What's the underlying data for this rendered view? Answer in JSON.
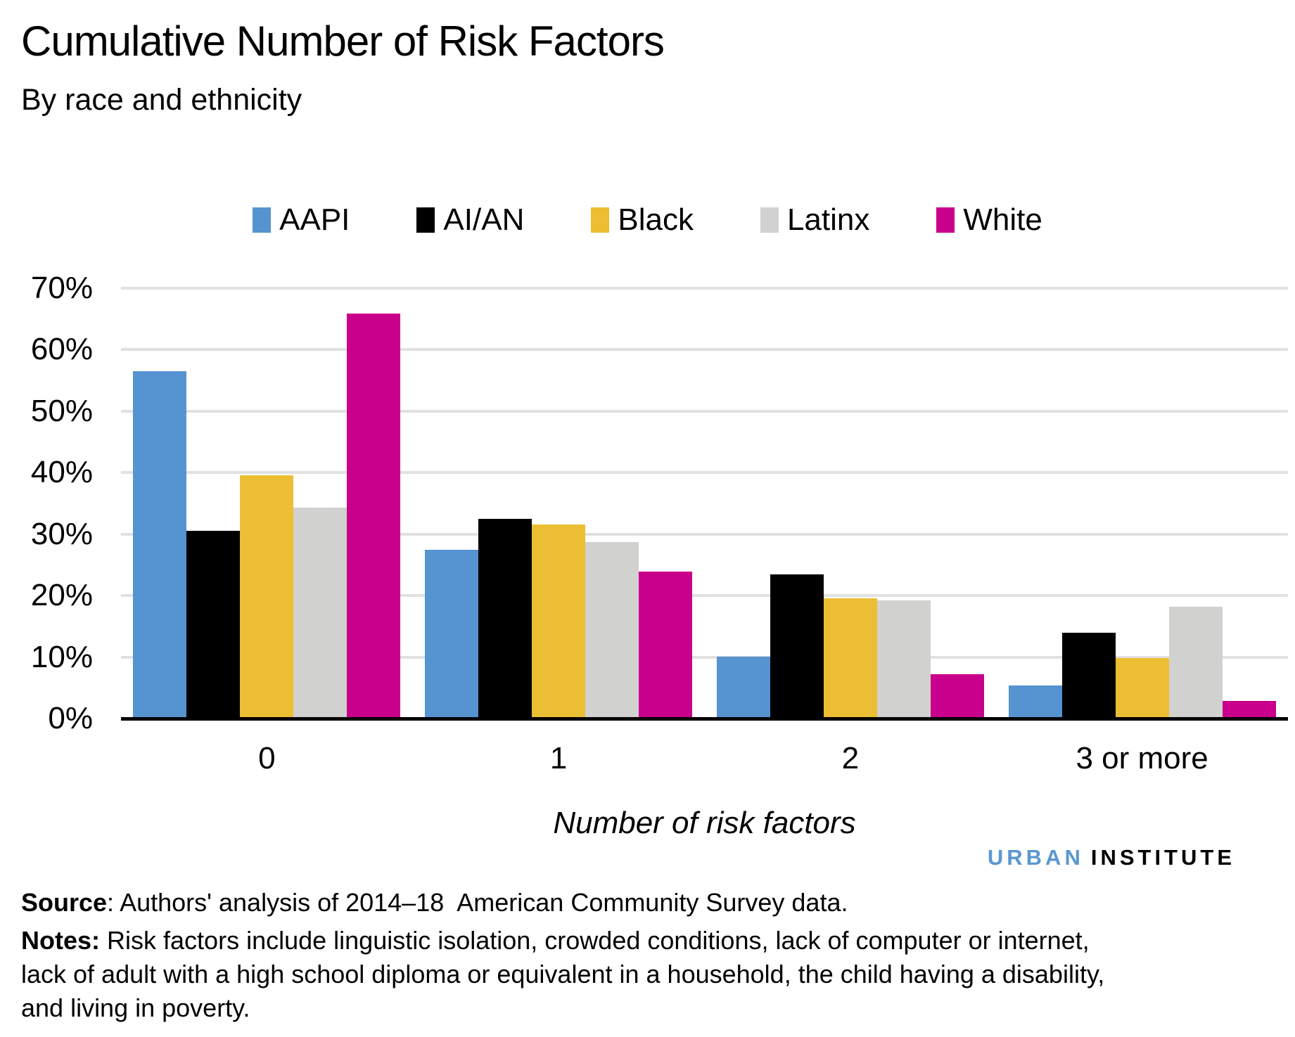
{
  "chart_data": {
    "type": "bar",
    "title": "Cumulative Number of Risk Factors",
    "subtitle": "By race and ethnicity",
    "categories": [
      "0",
      "1",
      "2",
      "3 or more"
    ],
    "series": [
      {
        "name": "AAPI",
        "color": "#5693d1",
        "values": [
          56.5,
          27.4,
          10.1,
          5.4
        ]
      },
      {
        "name": "AI/AN",
        "color": "#000000",
        "values": [
          30.5,
          32.5,
          23.4,
          14.0
        ]
      },
      {
        "name": "Black",
        "color": "#ecbe33",
        "values": [
          39.6,
          31.6,
          19.6,
          9.8
        ]
      },
      {
        "name": "Latinx",
        "color": "#d1d1d0",
        "values": [
          34.3,
          28.7,
          19.2,
          18.2
        ]
      },
      {
        "name": "White",
        "color": "#c9008c",
        "values": [
          65.9,
          23.9,
          7.2,
          2.9
        ]
      }
    ],
    "xlabel": "Number of risk factors",
    "ylabel": "",
    "ylim": [
      0,
      70
    ],
    "yticks": [
      {
        "label": "0%",
        "value": 0
      },
      {
        "label": "10%",
        "value": 10
      },
      {
        "label": "20%",
        "value": 20
      },
      {
        "label": "30%",
        "value": 30
      },
      {
        "label": "40%",
        "value": 40
      },
      {
        "label": "50%",
        "value": 50
      },
      {
        "label": "60%",
        "value": 60
      },
      {
        "label": "70%",
        "value": 70
      }
    ],
    "grid": true,
    "legend_position": "top",
    "gridline_color": "#e1e1e1",
    "axis_color": "#000000"
  },
  "logo": {
    "part1": "URBAN",
    "part2": "INSTITUTE",
    "part1_color": "#5b97d1",
    "part2_color": "#000000"
  },
  "source": {
    "label": "Source",
    "text": ": Authors' analysis of 2014–18  American Community Survey data."
  },
  "notes": {
    "label": "Notes:",
    "lines": [
      "Risk factors include linguistic isolation, crowded conditions, lack of computer or internet,",
      "lack of adult with a high school diploma or equivalent in a household, the child having a disability,",
      "and living in poverty."
    ]
  }
}
